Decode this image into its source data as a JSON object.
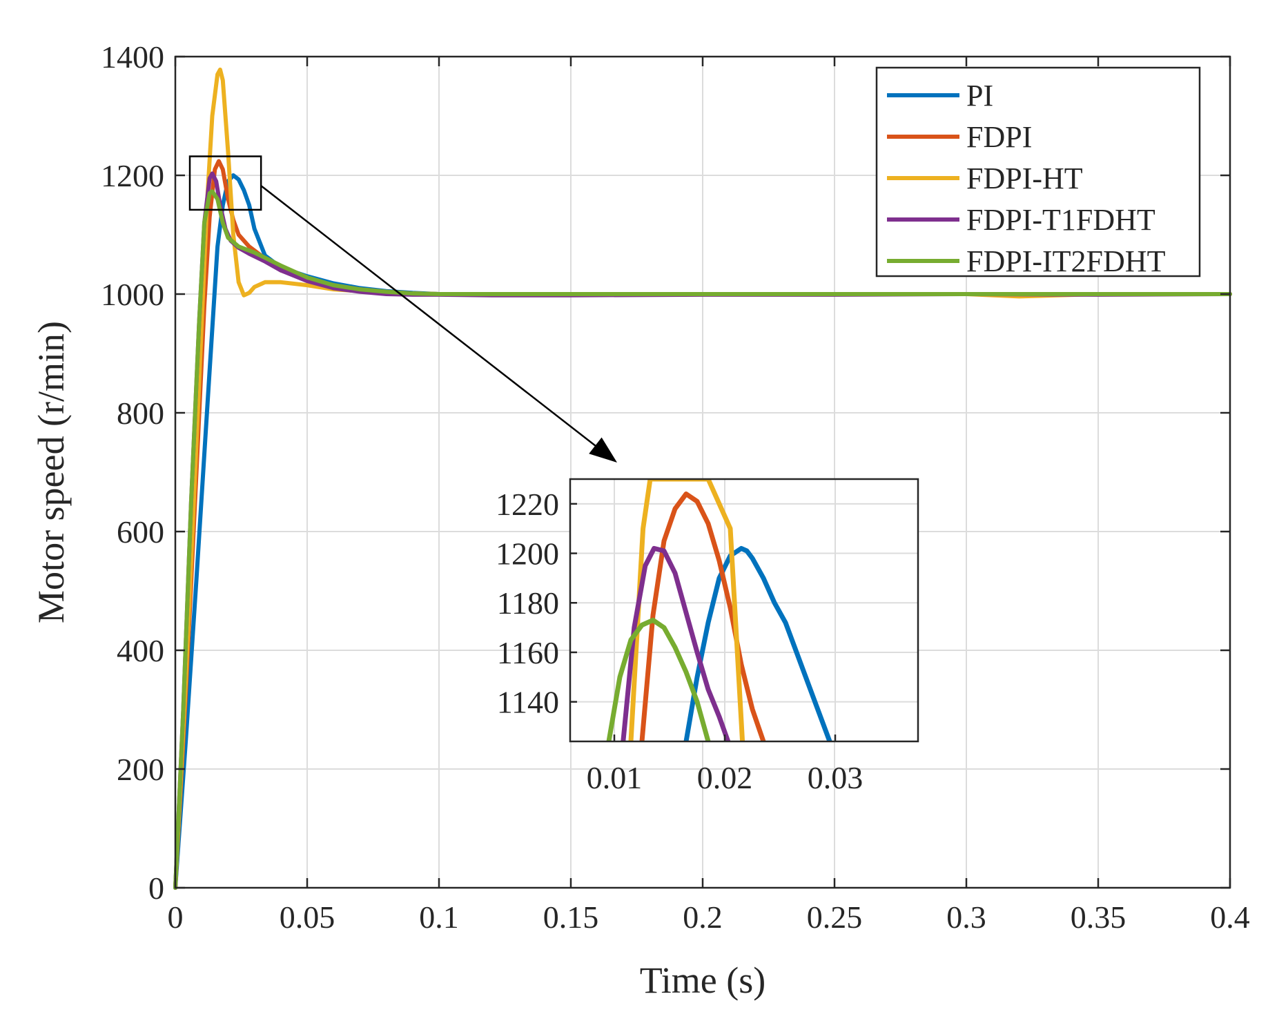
{
  "chart_data": {
    "type": "line",
    "title": "",
    "xlabel": "Time (s)",
    "ylabel": "Motor speed (r/min)",
    "xlim": [
      0,
      0.4
    ],
    "ylim": [
      0,
      1400
    ],
    "grid": true,
    "legend_position": "top-right",
    "x_ticks": [
      0,
      0.05,
      0.1,
      0.15,
      0.2,
      0.25,
      0.3,
      0.35,
      0.4
    ],
    "x_tick_labels": [
      "0",
      "0.05",
      "0.1",
      "0.15",
      "0.2",
      "0.25",
      "0.3",
      "0.35",
      "0.4"
    ],
    "y_ticks": [
      0,
      200,
      400,
      600,
      800,
      1000,
      1200,
      1400
    ],
    "y_tick_labels": [
      "0",
      "200",
      "400",
      "600",
      "800",
      "1000",
      "1200",
      "1400"
    ],
    "series": [
      {
        "name": "PI",
        "color": "#0072BD",
        "x": [
          0,
          0.004,
          0.008,
          0.012,
          0.016,
          0.018,
          0.02,
          0.022,
          0.024,
          0.026,
          0.028,
          0.03,
          0.034,
          0.04,
          0.05,
          0.06,
          0.07,
          0.08,
          0.09,
          0.1,
          0.15,
          0.2,
          0.25,
          0.3,
          0.35,
          0.4
        ],
        "y": [
          0,
          250,
          520,
          800,
          1080,
          1150,
          1190,
          1200,
          1193,
          1175,
          1150,
          1110,
          1065,
          1045,
          1030,
          1018,
          1010,
          1005,
          1002,
          1000,
          1000,
          1000,
          1000,
          1000,
          1000,
          1000
        ]
      },
      {
        "name": "FDPI",
        "color": "#D95319",
        "x": [
          0,
          0.004,
          0.008,
          0.011,
          0.013,
          0.015,
          0.0165,
          0.018,
          0.02,
          0.022,
          0.024,
          0.028,
          0.034,
          0.04,
          0.05,
          0.06,
          0.07,
          0.08,
          0.09,
          0.1,
          0.15,
          0.2,
          0.25,
          0.3,
          0.35,
          0.4
        ],
        "y": [
          0,
          330,
          700,
          980,
          1130,
          1210,
          1224,
          1210,
          1160,
          1125,
          1100,
          1080,
          1060,
          1040,
          1025,
          1015,
          1008,
          1004,
          1001,
          1000,
          1000,
          1000,
          1000,
          1000,
          1000,
          1000
        ]
      },
      {
        "name": "FDPI-HT",
        "color": "#EDB120",
        "x": [
          0,
          0.004,
          0.008,
          0.012,
          0.014,
          0.016,
          0.017,
          0.018,
          0.02,
          0.022,
          0.024,
          0.026,
          0.028,
          0.03,
          0.034,
          0.04,
          0.05,
          0.06,
          0.08,
          0.1,
          0.15,
          0.2,
          0.25,
          0.3,
          0.32,
          0.35,
          0.4
        ],
        "y": [
          0,
          350,
          750,
          1150,
          1300,
          1370,
          1378,
          1360,
          1240,
          1100,
          1020,
          998,
          1002,
          1012,
          1020,
          1020,
          1015,
          1008,
          1002,
          1000,
          1000,
          1000,
          1000,
          1000,
          996,
          1000,
          1000
        ]
      },
      {
        "name": "FDPI-T1FDHT",
        "color": "#7E2F8E",
        "x": [
          0,
          0.003,
          0.006,
          0.009,
          0.011,
          0.013,
          0.014,
          0.0155,
          0.017,
          0.019,
          0.021,
          0.024,
          0.028,
          0.034,
          0.04,
          0.05,
          0.06,
          0.07,
          0.08,
          0.09,
          0.1,
          0.12,
          0.15,
          0.2,
          0.25,
          0.3,
          0.35,
          0.4
        ],
        "y": [
          0,
          300,
          650,
          950,
          1120,
          1195,
          1203,
          1190,
          1150,
          1110,
          1090,
          1078,
          1068,
          1055,
          1040,
          1022,
          1010,
          1004,
          1000,
          999,
          999,
          998,
          998,
          999,
          999,
          1000,
          999,
          1000
        ]
      },
      {
        "name": "FDPI-IT2FDHT",
        "color": "#77AC30",
        "x": [
          0,
          0.003,
          0.006,
          0.009,
          0.011,
          0.013,
          0.014,
          0.016,
          0.018,
          0.02,
          0.024,
          0.03,
          0.04,
          0.05,
          0.06,
          0.07,
          0.08,
          0.09,
          0.1,
          0.15,
          0.2,
          0.25,
          0.3,
          0.35,
          0.4
        ],
        "y": [
          0,
          300,
          650,
          950,
          1120,
          1170,
          1173,
          1160,
          1120,
          1095,
          1080,
          1070,
          1048,
          1028,
          1015,
          1008,
          1004,
          1001,
          1000,
          1000,
          1000,
          1000,
          1000,
          1000,
          1000
        ]
      }
    ],
    "inset": {
      "xlim": [
        0.006,
        0.0375
      ],
      "ylim": [
        1124,
        1230
      ],
      "x_ticks": [
        0.01,
        0.02,
        0.03
      ],
      "x_tick_labels": [
        "0.01",
        "0.02",
        "0.03"
      ],
      "y_ticks": [
        1140,
        1160,
        1180,
        1200,
        1220
      ],
      "y_tick_labels": [
        "1140",
        "1160",
        "1180",
        "1200",
        "1220"
      ],
      "zoom_box": {
        "xlim": [
          0.0055,
          0.0325
        ],
        "ylim": [
          1142,
          1232
        ]
      },
      "series": [
        {
          "name": "PI",
          "x": [
            0.0165,
            0.0175,
            0.0185,
            0.0195,
            0.0205,
            0.0215,
            0.022,
            0.0225,
            0.0235,
            0.0245,
            0.0255,
            0.0265,
            0.0275,
            0.0285,
            0.0295
          ],
          "y": [
            1124,
            1150,
            1172,
            1190,
            1199,
            1202,
            1201,
            1198,
            1190,
            1180,
            1172,
            1160,
            1148,
            1136,
            1124
          ]
        },
        {
          "name": "FDPI",
          "x": [
            0.0125,
            0.0135,
            0.0145,
            0.0155,
            0.0165,
            0.0175,
            0.0185,
            0.0195,
            0.0205,
            0.0215,
            0.0225,
            0.0235
          ],
          "y": [
            1124,
            1175,
            1205,
            1218,
            1224,
            1221,
            1212,
            1197,
            1178,
            1155,
            1137,
            1124
          ]
        },
        {
          "name": "FDPI-HT",
          "x": [
            0.0115,
            0.0126,
            0.01325,
            0.0185,
            0.0205,
            0.0216
          ],
          "y": [
            1124,
            1210,
            1230,
            1230,
            1210,
            1124
          ]
        },
        {
          "name": "FDPI-T1FDHT",
          "x": [
            0.0108,
            0.0118,
            0.0128,
            0.0136,
            0.0145,
            0.0155,
            0.0165,
            0.0175,
            0.0185,
            0.0195,
            0.0203
          ],
          "y": [
            1124,
            1170,
            1195,
            1202,
            1201,
            1192,
            1176,
            1160,
            1145,
            1134,
            1124
          ]
        },
        {
          "name": "FDPI-IT2FDHT",
          "x": [
            0.0095,
            0.0105,
            0.0115,
            0.0125,
            0.0135,
            0.0145,
            0.0155,
            0.0165,
            0.0175,
            0.0185
          ],
          "y": [
            1124,
            1150,
            1165,
            1171,
            1173,
            1170,
            1162,
            1152,
            1140,
            1124
          ]
        }
      ]
    }
  }
}
